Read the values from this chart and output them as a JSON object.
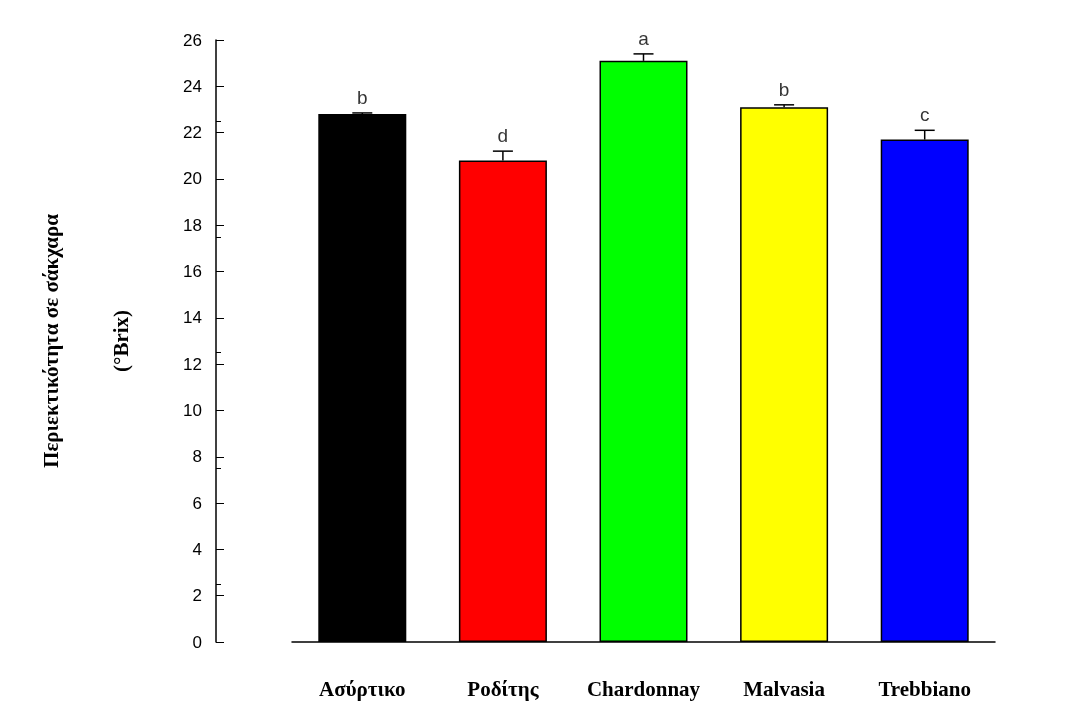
{
  "chart_data": {
    "type": "bar",
    "ylabel": "Περιεκτικότητα σε σάκχαρα\n(°Brix)",
    "categories": [
      "Ασύρτικο",
      "Ροδίτης",
      "Chardonnay",
      "Malvasia",
      "Trebbiano"
    ],
    "values": [
      22.8,
      20.8,
      25.1,
      23.1,
      21.7
    ],
    "colors": [
      "#000000",
      "#ff0000",
      "#00ff00",
      "#ffff00",
      "#0000ff"
    ],
    "errors": [
      [
        22.8,
        22.85
      ],
      [
        20.8,
        21.2
      ],
      [
        25.1,
        25.4
      ],
      [
        23.1,
        23.2
      ],
      [
        21.7,
        22.1
      ]
    ],
    "ylim": [
      0,
      26
    ],
    "yticks": [
      0,
      2,
      4,
      6,
      8,
      10,
      12,
      14,
      16,
      18,
      20,
      22,
      24,
      26
    ],
    "annotations": [
      {
        "text": "b",
        "x": "Ασύρτικο",
        "y": 22.85
      },
      {
        "text": "d",
        "x": "Ροδίτης",
        "y": 21.2
      },
      {
        "text": "a",
        "x": "Chardonnay",
        "y": 25.4
      },
      {
        "text": "b",
        "x": "Malvasia",
        "y": 23.2
      },
      {
        "text": "c",
        "x": "Trebbiano",
        "y": 22.1
      }
    ],
    "grid": false
  }
}
